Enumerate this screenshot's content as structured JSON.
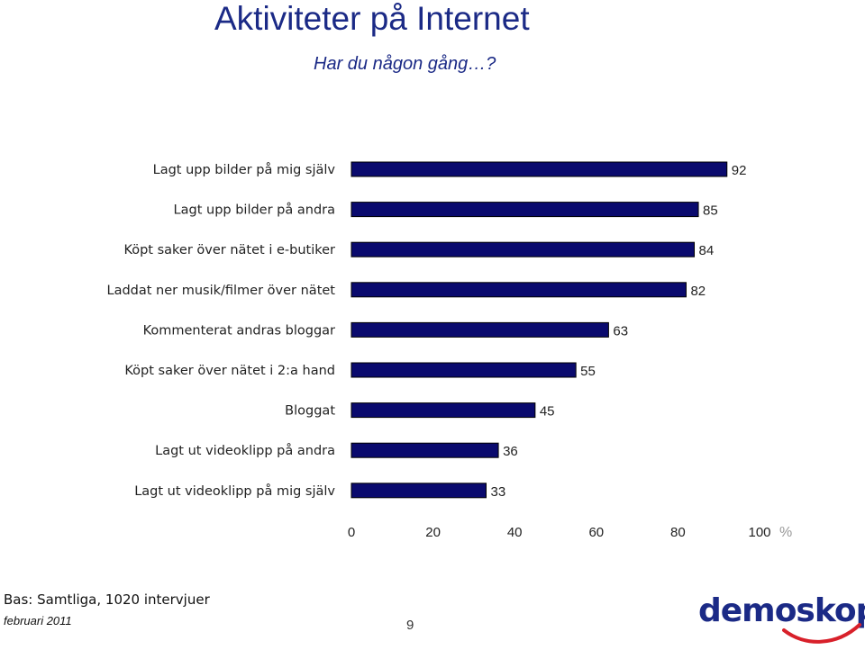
{
  "header": {
    "title": "Aktiviteter på Internet",
    "subtitle": "Har du någon gång…?"
  },
  "chart_data": {
    "type": "bar",
    "orientation": "horizontal",
    "categories": [
      "Lagt upp bilder på mig själv",
      "Lagt upp bilder på andra",
      "Köpt saker över nätet i e-butiker",
      "Laddat ner musik/filmer över nätet",
      "Kommenterat andras bloggar",
      "Köpt saker över nätet i 2:a hand",
      "Bloggat",
      "Lagt ut videoklipp på andra",
      "Lagt ut videoklipp på mig själv"
    ],
    "values": [
      92,
      85,
      84,
      82,
      63,
      55,
      45,
      36,
      33
    ],
    "xticks": [
      "0",
      "20",
      "40",
      "60",
      "80",
      "100"
    ],
    "unit": "%",
    "xlim": [
      0,
      100
    ],
    "grid": false,
    "colors": {
      "bar_fill": "#0a0a6e",
      "bar_border": "#000000"
    }
  },
  "footer": {
    "base": "Bas: Samtliga, 1020 intervjuer",
    "date": "februari 2011",
    "page": "9",
    "logo": "demoskop"
  }
}
